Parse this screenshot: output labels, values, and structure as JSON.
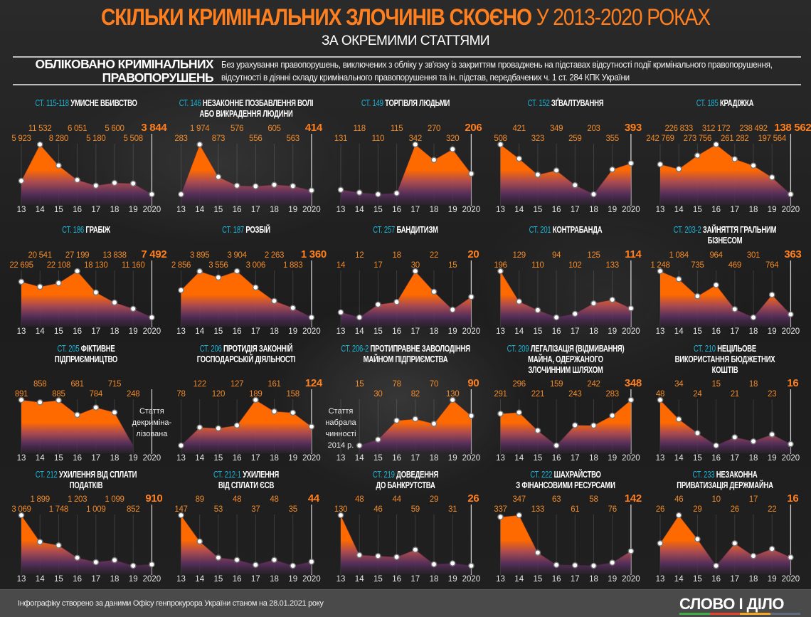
{
  "header": {
    "title_bold": "СКІЛЬКИ  КРИМІНАЛЬНИХ ЗЛОЧИНІВ СКОЄНО",
    "title_light": "У 2013-2020 РОКАХ",
    "subtitle": "ЗА ОКРЕМИМИ СТАТТЯМИ",
    "section_title": "ОБЛІКОВАНО КРИМІНАЛЬНИХ ПРАВОПОРУШЕНЬ",
    "section_desc": "Без урахування правопорушень, виключених з обліку у зв'язку із закриттям проваджень на підставах відсутності події кримінального правопорушення, відсутності в діянні складу кримінального правопорушення та ін. підстав, передбачених ч. 1 ст. 284 КПК України"
  },
  "footer": {
    "source": "Інфографіку створено за даними Офісу генпрокурора України станом на 28.01.2021 року",
    "logo": "СЛОВО І ДІЛО"
  },
  "colors": {
    "accent": "#ff7f1e",
    "article": "#19b3d6",
    "fill_top": "#ff6a00",
    "fill_bottom": "#5a3060",
    "logo_bar": [
      "#3fae49",
      "#e8412c",
      "#f4a623",
      "#5f6a7a"
    ]
  },
  "chart_data": {
    "type": "area",
    "title": "СКІЛЬКИ КРИМІНАЛЬНИХ ЗЛОЧИНІВ СКОЄНО У 2013-2020 РОКАХ",
    "x": [
      2013,
      2014,
      2015,
      2016,
      2017,
      2018,
      2019,
      2020
    ],
    "x_labels": [
      "13",
      "14",
      "15",
      "16",
      "17",
      "18",
      "19",
      "2020"
    ],
    "charts": [
      {
        "article": "СТ. 115-118",
        "title": "УМИСНЕ ВБИВСТВО",
        "values": [
          5923,
          11532,
          8280,
          6051,
          5180,
          5600,
          5508,
          3844
        ],
        "labels": [
          "5 923",
          "11 532",
          "8 280",
          "6 051",
          "5 180",
          "5 600",
          "5 508",
          "3 844"
        ]
      },
      {
        "article": "СТ. 146",
        "title": "НЕЗАКОННЕ ПОЗБАВЛЕННЯ ВОЛІ\nАБО ВИКРАДЕННЯ ЛЮДИНИ",
        "values": [
          283,
          1974,
          873,
          576,
          556,
          605,
          563,
          414
        ],
        "labels": [
          "283",
          "1 974",
          "873",
          "576",
          "556",
          "605",
          "563",
          "414"
        ]
      },
      {
        "article": "СТ. 149",
        "title": "ТОРГІВЛЯ ЛЮДЬМИ",
        "values": [
          131,
          118,
          110,
          115,
          342,
          270,
          320,
          206
        ],
        "labels": [
          "131",
          "118",
          "110",
          "115",
          "342",
          "270",
          "320",
          "206"
        ]
      },
      {
        "article": "СТ. 152",
        "title": "ЗҐВАЛТУВАННЯ",
        "values": [
          508,
          421,
          323,
          349,
          259,
          203,
          355,
          393
        ],
        "labels": [
          "508",
          "421",
          "323",
          "349",
          "259",
          "203",
          "355",
          "393"
        ]
      },
      {
        "article": "СТ. 185",
        "title": "КРАДІЖКА",
        "values": [
          242769,
          226833,
          273756,
          312172,
          261282,
          238492,
          197564,
          138562
        ],
        "labels": [
          "242 769",
          "226 833",
          "273 756",
          "312 172",
          "261 282",
          "238 492",
          "197 564",
          "138 562"
        ]
      },
      {
        "article": "СТ. 186",
        "title": "ГРАБІЖ",
        "values": [
          22695,
          20541,
          22108,
          27199,
          18130,
          13838,
          11160,
          7492
        ],
        "labels": [
          "22 695",
          "20 541",
          "22 108",
          "27 199",
          "18 130",
          "13 838",
          "11 160",
          "7 492"
        ]
      },
      {
        "article": "СТ. 187",
        "title": "РОЗБІЙ",
        "values": [
          2856,
          3895,
          3556,
          3904,
          3006,
          2263,
          1883,
          1360
        ],
        "labels": [
          "2 856",
          "3 895",
          "3 556",
          "3 904",
          "3 006",
          "2 263",
          "1 883",
          "1 360"
        ]
      },
      {
        "article": "СТ. 257",
        "title": "БАНДИТИЗМ",
        "values": [
          14,
          12,
          17,
          18,
          30,
          22,
          15,
          20
        ],
        "labels": [
          "14",
          "12",
          "17",
          "18",
          "30",
          "22",
          "15",
          "20"
        ]
      },
      {
        "article": "СТ. 201",
        "title": "КОНТРАБАНДА",
        "values": [
          196,
          129,
          110,
          94,
          102,
          125,
          133,
          114
        ],
        "labels": [
          "196",
          "129",
          "110",
          "94",
          "102",
          "125",
          "133",
          "114"
        ]
      },
      {
        "article": "СТ. 203-2",
        "title": "ЗАЙНЯТТЯ ГРАЛЬНИМ\nБІЗНЕСОМ",
        "values": [
          1248,
          1084,
          735,
          964,
          469,
          301,
          764,
          363
        ],
        "labels": [
          "1 248",
          "1 084",
          "735",
          "964",
          "469",
          "301",
          "764",
          "363"
        ]
      },
      {
        "article": "СТ. 205",
        "title": "ФІКТИВНЕ\nПІДПРИЄМНИЦТВО",
        "values": [
          891,
          858,
          885,
          681,
          784,
          715,
          248,
          null
        ],
        "labels": [
          "891",
          "858",
          "885",
          "681",
          "784",
          "715",
          "248",
          null
        ],
        "note": "Стаття\nдекриміна-\nлізована",
        "note_year_index": 7
      },
      {
        "article": "СТ. 206",
        "title": "ПРОТИДІЯ ЗАКОННІЙ\nГОСПОДАРСЬКІЙ ДІЯЛЬНОСТІ",
        "values": [
          78,
          122,
          120,
          127,
          189,
          161,
          158,
          124
        ],
        "labels": [
          "78",
          "122",
          "120",
          "127",
          "189",
          "161",
          "158",
          "124"
        ]
      },
      {
        "article": "СТ. 206-2",
        "title": "ПРОТИПРАВНЕ ЗАВОЛОДІННЯ\nМАЙНОМ ПІДПРИЄМСТВА",
        "values": [
          null,
          15,
          30,
          78,
          82,
          70,
          130,
          90
        ],
        "labels": [
          null,
          "15",
          "30",
          "78",
          "82",
          "70",
          "130",
          "90"
        ],
        "note": "Стаття\nнабрала\nчинності\n2014 р.",
        "note_year_index": 0
      },
      {
        "article": "СТ. 209",
        "title": "ЛЕГАЛІЗАЦІЯ (ВІДМИВАННЯ)\nМАЙНА, ОДЕРЖАНОГО\nЗЛОЧИННИМ ШЛЯХОМ",
        "values": [
          291,
          296,
          221,
          159,
          243,
          242,
          283,
          348
        ],
        "labels": [
          "291",
          "296",
          "221",
          "159",
          "243",
          "242",
          "283",
          "348"
        ]
      },
      {
        "article": "СТ. 210",
        "title": "НЕЦІЛЬОВЕ\nВИКОРИСТАННЯ БЮДЖЕТНИХ\nКОШТІВ",
        "values": [
          48,
          34,
          24,
          15,
          21,
          18,
          23,
          16
        ],
        "labels": [
          "48",
          "34",
          "24",
          "15",
          "21",
          "18",
          "23",
          "16"
        ]
      },
      {
        "article": "СТ. 212",
        "title": "УХИЛЕННЯ ВІД СПЛАТИ\nПОДАТКІВ",
        "values": [
          3069,
          1899,
          1748,
          1203,
          1009,
          1099,
          852,
          910
        ],
        "labels": [
          "3 069",
          "1 899",
          "1 748",
          "1 203",
          "1 009",
          "1 099",
          "852",
          "910"
        ]
      },
      {
        "article": "СТ. 212-1",
        "title": "УХИЛЕННЯ\nВІД СПЛАТИ ЄСВ",
        "values": [
          147,
          89,
          53,
          48,
          37,
          48,
          35,
          44
        ],
        "labels": [
          "147",
          "89",
          "53",
          "48",
          "37",
          "48",
          "35",
          "44"
        ]
      },
      {
        "article": "СТ. 219",
        "title": "ДОВЕДЕННЯ\nДО БАНКРУТСТВА",
        "values": [
          130,
          48,
          46,
          44,
          59,
          29,
          31,
          26
        ],
        "labels": [
          "130",
          "48",
          "46",
          "44",
          "59",
          "29",
          "31",
          "26"
        ]
      },
      {
        "article": "СТ. 222",
        "title": "ШАХРАЙСТВО\nЗ ФІНАНСОВИМИ РЕСУРСАМИ",
        "values": [
          337,
          347,
          133,
          63,
          61,
          58,
          76,
          142
        ],
        "labels": [
          "337",
          "347",
          "133",
          "63",
          "61",
          "58",
          "76",
          "142"
        ]
      },
      {
        "article": "СТ. 233",
        "title": "НЕЗАКОННА\nПРИВАТИЗАЦІЯ ДЕРЖМАЙНА",
        "values": [
          26,
          46,
          29,
          10,
          26,
          17,
          22,
          16
        ],
        "labels": [
          "26",
          "46",
          "29",
          "10",
          "26",
          "17",
          "22",
          "16"
        ]
      }
    ]
  }
}
